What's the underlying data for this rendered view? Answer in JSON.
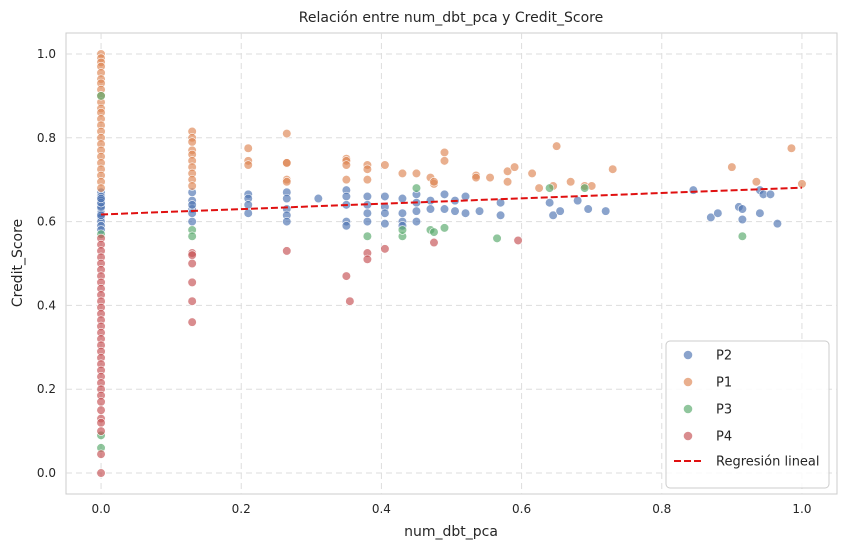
{
  "chart_data": {
    "type": "scatter",
    "title": "Relación entre num_dbt_pca y Credit_Score",
    "xlabel": "num_dbt_pca",
    "ylabel": "Credit_Score",
    "xlim": [
      -0.05,
      1.05
    ],
    "ylim": [
      -0.05,
      1.05
    ],
    "xticks": [
      "0.0",
      "0.2",
      "0.4",
      "0.6",
      "0.8",
      "1.0"
    ],
    "yticks": [
      "0.0",
      "0.2",
      "0.4",
      "0.6",
      "0.8",
      "1.0"
    ],
    "grid": true,
    "legend_position": "lower-right",
    "series": [
      {
        "name": "P2",
        "color": "#4c72b0",
        "points": [
          [
            0.0,
            0.67
          ],
          [
            0.0,
            0.66
          ],
          [
            0.0,
            0.65
          ],
          [
            0.0,
            0.64
          ],
          [
            0.0,
            0.63
          ],
          [
            0.0,
            0.62
          ],
          [
            0.0,
            0.61
          ],
          [
            0.0,
            0.6
          ],
          [
            0.0,
            0.59
          ],
          [
            0.0,
            0.58
          ],
          [
            0.0,
            0.635
          ],
          [
            0.0,
            0.645
          ],
          [
            0.0,
            0.655
          ],
          [
            0.0,
            0.615
          ],
          [
            0.13,
            0.67
          ],
          [
            0.13,
            0.65
          ],
          [
            0.13,
            0.63
          ],
          [
            0.13,
            0.62
          ],
          [
            0.13,
            0.6
          ],
          [
            0.13,
            0.64
          ],
          [
            0.21,
            0.665
          ],
          [
            0.21,
            0.655
          ],
          [
            0.21,
            0.64
          ],
          [
            0.21,
            0.62
          ],
          [
            0.265,
            0.67
          ],
          [
            0.265,
            0.655
          ],
          [
            0.265,
            0.63
          ],
          [
            0.265,
            0.615
          ],
          [
            0.265,
            0.6
          ],
          [
            0.31,
            0.655
          ],
          [
            0.35,
            0.675
          ],
          [
            0.35,
            0.66
          ],
          [
            0.35,
            0.64
          ],
          [
            0.35,
            0.6
          ],
          [
            0.35,
            0.59
          ],
          [
            0.38,
            0.66
          ],
          [
            0.38,
            0.64
          ],
          [
            0.38,
            0.62
          ],
          [
            0.38,
            0.6
          ],
          [
            0.405,
            0.66
          ],
          [
            0.405,
            0.635
          ],
          [
            0.405,
            0.62
          ],
          [
            0.405,
            0.595
          ],
          [
            0.43,
            0.655
          ],
          [
            0.43,
            0.62
          ],
          [
            0.43,
            0.6
          ],
          [
            0.43,
            0.59
          ],
          [
            0.45,
            0.665
          ],
          [
            0.45,
            0.645
          ],
          [
            0.45,
            0.625
          ],
          [
            0.45,
            0.6
          ],
          [
            0.47,
            0.65
          ],
          [
            0.47,
            0.63
          ],
          [
            0.49,
            0.665
          ],
          [
            0.49,
            0.63
          ],
          [
            0.505,
            0.65
          ],
          [
            0.505,
            0.625
          ],
          [
            0.52,
            0.66
          ],
          [
            0.52,
            0.62
          ],
          [
            0.54,
            0.625
          ],
          [
            0.57,
            0.645
          ],
          [
            0.57,
            0.615
          ],
          [
            0.64,
            0.645
          ],
          [
            0.645,
            0.615
          ],
          [
            0.655,
            0.625
          ],
          [
            0.68,
            0.65
          ],
          [
            0.695,
            0.63
          ],
          [
            0.72,
            0.625
          ],
          [
            0.845,
            0.675
          ],
          [
            0.87,
            0.61
          ],
          [
            0.88,
            0.62
          ],
          [
            0.91,
            0.635
          ],
          [
            0.915,
            0.605
          ],
          [
            0.915,
            0.63
          ],
          [
            0.94,
            0.62
          ],
          [
            0.94,
            0.675
          ],
          [
            0.945,
            0.665
          ],
          [
            0.955,
            0.665
          ],
          [
            0.965,
            0.595
          ]
        ]
      },
      {
        "name": "P1",
        "color": "#dd8452",
        "points": [
          [
            0.0,
            1.0
          ],
          [
            0.0,
            0.99
          ],
          [
            0.0,
            0.98
          ],
          [
            0.0,
            0.97
          ],
          [
            0.0,
            0.955
          ],
          [
            0.0,
            0.94
          ],
          [
            0.0,
            0.93
          ],
          [
            0.0,
            0.915
          ],
          [
            0.0,
            0.9
          ],
          [
            0.0,
            0.885
          ],
          [
            0.0,
            0.87
          ],
          [
            0.0,
            0.86
          ],
          [
            0.0,
            0.845
          ],
          [
            0.0,
            0.83
          ],
          [
            0.0,
            0.815
          ],
          [
            0.0,
            0.8
          ],
          [
            0.0,
            0.785
          ],
          [
            0.0,
            0.77
          ],
          [
            0.0,
            0.755
          ],
          [
            0.0,
            0.74
          ],
          [
            0.0,
            0.725
          ],
          [
            0.0,
            0.71
          ],
          [
            0.0,
            0.695
          ],
          [
            0.0,
            0.68
          ],
          [
            0.13,
            0.815
          ],
          [
            0.13,
            0.8
          ],
          [
            0.13,
            0.79
          ],
          [
            0.13,
            0.77
          ],
          [
            0.13,
            0.76
          ],
          [
            0.13,
            0.745
          ],
          [
            0.13,
            0.73
          ],
          [
            0.13,
            0.715
          ],
          [
            0.13,
            0.7
          ],
          [
            0.13,
            0.685
          ],
          [
            0.21,
            0.775
          ],
          [
            0.21,
            0.745
          ],
          [
            0.21,
            0.735
          ],
          [
            0.265,
            0.81
          ],
          [
            0.265,
            0.74
          ],
          [
            0.265,
            0.74
          ],
          [
            0.265,
            0.7
          ],
          [
            0.265,
            0.695
          ],
          [
            0.35,
            0.75
          ],
          [
            0.35,
            0.745
          ],
          [
            0.35,
            0.735
          ],
          [
            0.35,
            0.7
          ],
          [
            0.38,
            0.735
          ],
          [
            0.38,
            0.725
          ],
          [
            0.38,
            0.7
          ],
          [
            0.405,
            0.735
          ],
          [
            0.43,
            0.715
          ],
          [
            0.45,
            0.715
          ],
          [
            0.47,
            0.705
          ],
          [
            0.475,
            0.69
          ],
          [
            0.475,
            0.695
          ],
          [
            0.49,
            0.765
          ],
          [
            0.49,
            0.745
          ],
          [
            0.535,
            0.71
          ],
          [
            0.535,
            0.705
          ],
          [
            0.555,
            0.705
          ],
          [
            0.58,
            0.72
          ],
          [
            0.59,
            0.73
          ],
          [
            0.58,
            0.695
          ],
          [
            0.615,
            0.715
          ],
          [
            0.625,
            0.68
          ],
          [
            0.645,
            0.685
          ],
          [
            0.65,
            0.78
          ],
          [
            0.67,
            0.695
          ],
          [
            0.69,
            0.685
          ],
          [
            0.7,
            0.685
          ],
          [
            0.73,
            0.725
          ],
          [
            0.9,
            0.73
          ],
          [
            0.935,
            0.695
          ],
          [
            0.985,
            0.775
          ],
          [
            1.0,
            0.69
          ]
        ]
      },
      {
        "name": "P3",
        "color": "#55a868",
        "points": [
          [
            0.0,
            0.9
          ],
          [
            0.0,
            0.57
          ],
          [
            0.0,
            0.09
          ],
          [
            0.0,
            0.06
          ],
          [
            0.13,
            0.58
          ],
          [
            0.13,
            0.565
          ],
          [
            0.38,
            0.565
          ],
          [
            0.43,
            0.565
          ],
          [
            0.43,
            0.58
          ],
          [
            0.45,
            0.68
          ],
          [
            0.47,
            0.58
          ],
          [
            0.475,
            0.575
          ],
          [
            0.49,
            0.585
          ],
          [
            0.565,
            0.56
          ],
          [
            0.64,
            0.68
          ],
          [
            0.69,
            0.68
          ],
          [
            0.915,
            0.565
          ]
        ]
      },
      {
        "name": "P4",
        "color": "#c44e52",
        "points": [
          [
            0.0,
            0.56
          ],
          [
            0.0,
            0.545
          ],
          [
            0.0,
            0.53
          ],
          [
            0.0,
            0.515
          ],
          [
            0.0,
            0.5
          ],
          [
            0.0,
            0.485
          ],
          [
            0.0,
            0.47
          ],
          [
            0.0,
            0.455
          ],
          [
            0.0,
            0.44
          ],
          [
            0.0,
            0.425
          ],
          [
            0.0,
            0.41
          ],
          [
            0.0,
            0.395
          ],
          [
            0.0,
            0.38
          ],
          [
            0.0,
            0.365
          ],
          [
            0.0,
            0.35
          ],
          [
            0.0,
            0.335
          ],
          [
            0.0,
            0.32
          ],
          [
            0.0,
            0.305
          ],
          [
            0.0,
            0.29
          ],
          [
            0.0,
            0.275
          ],
          [
            0.0,
            0.26
          ],
          [
            0.0,
            0.245
          ],
          [
            0.0,
            0.23
          ],
          [
            0.0,
            0.215
          ],
          [
            0.0,
            0.2
          ],
          [
            0.0,
            0.185
          ],
          [
            0.0,
            0.17
          ],
          [
            0.0,
            0.15
          ],
          [
            0.0,
            0.13
          ],
          [
            0.0,
            0.12
          ],
          [
            0.0,
            0.1
          ],
          [
            0.0,
            0.045
          ],
          [
            0.0,
            0.0
          ],
          [
            0.13,
            0.525
          ],
          [
            0.13,
            0.52
          ],
          [
            0.13,
            0.5
          ],
          [
            0.13,
            0.455
          ],
          [
            0.13,
            0.41
          ],
          [
            0.13,
            0.36
          ],
          [
            0.265,
            0.53
          ],
          [
            0.35,
            0.47
          ],
          [
            0.355,
            0.41
          ],
          [
            0.38,
            0.525
          ],
          [
            0.38,
            0.51
          ],
          [
            0.405,
            0.535
          ],
          [
            0.475,
            0.55
          ],
          [
            0.595,
            0.555
          ]
        ]
      }
    ],
    "regression": {
      "name": "Regresión lineal",
      "color": "#e01010",
      "x": [
        0.0,
        1.0
      ],
      "y": [
        0.617,
        0.681
      ]
    }
  }
}
